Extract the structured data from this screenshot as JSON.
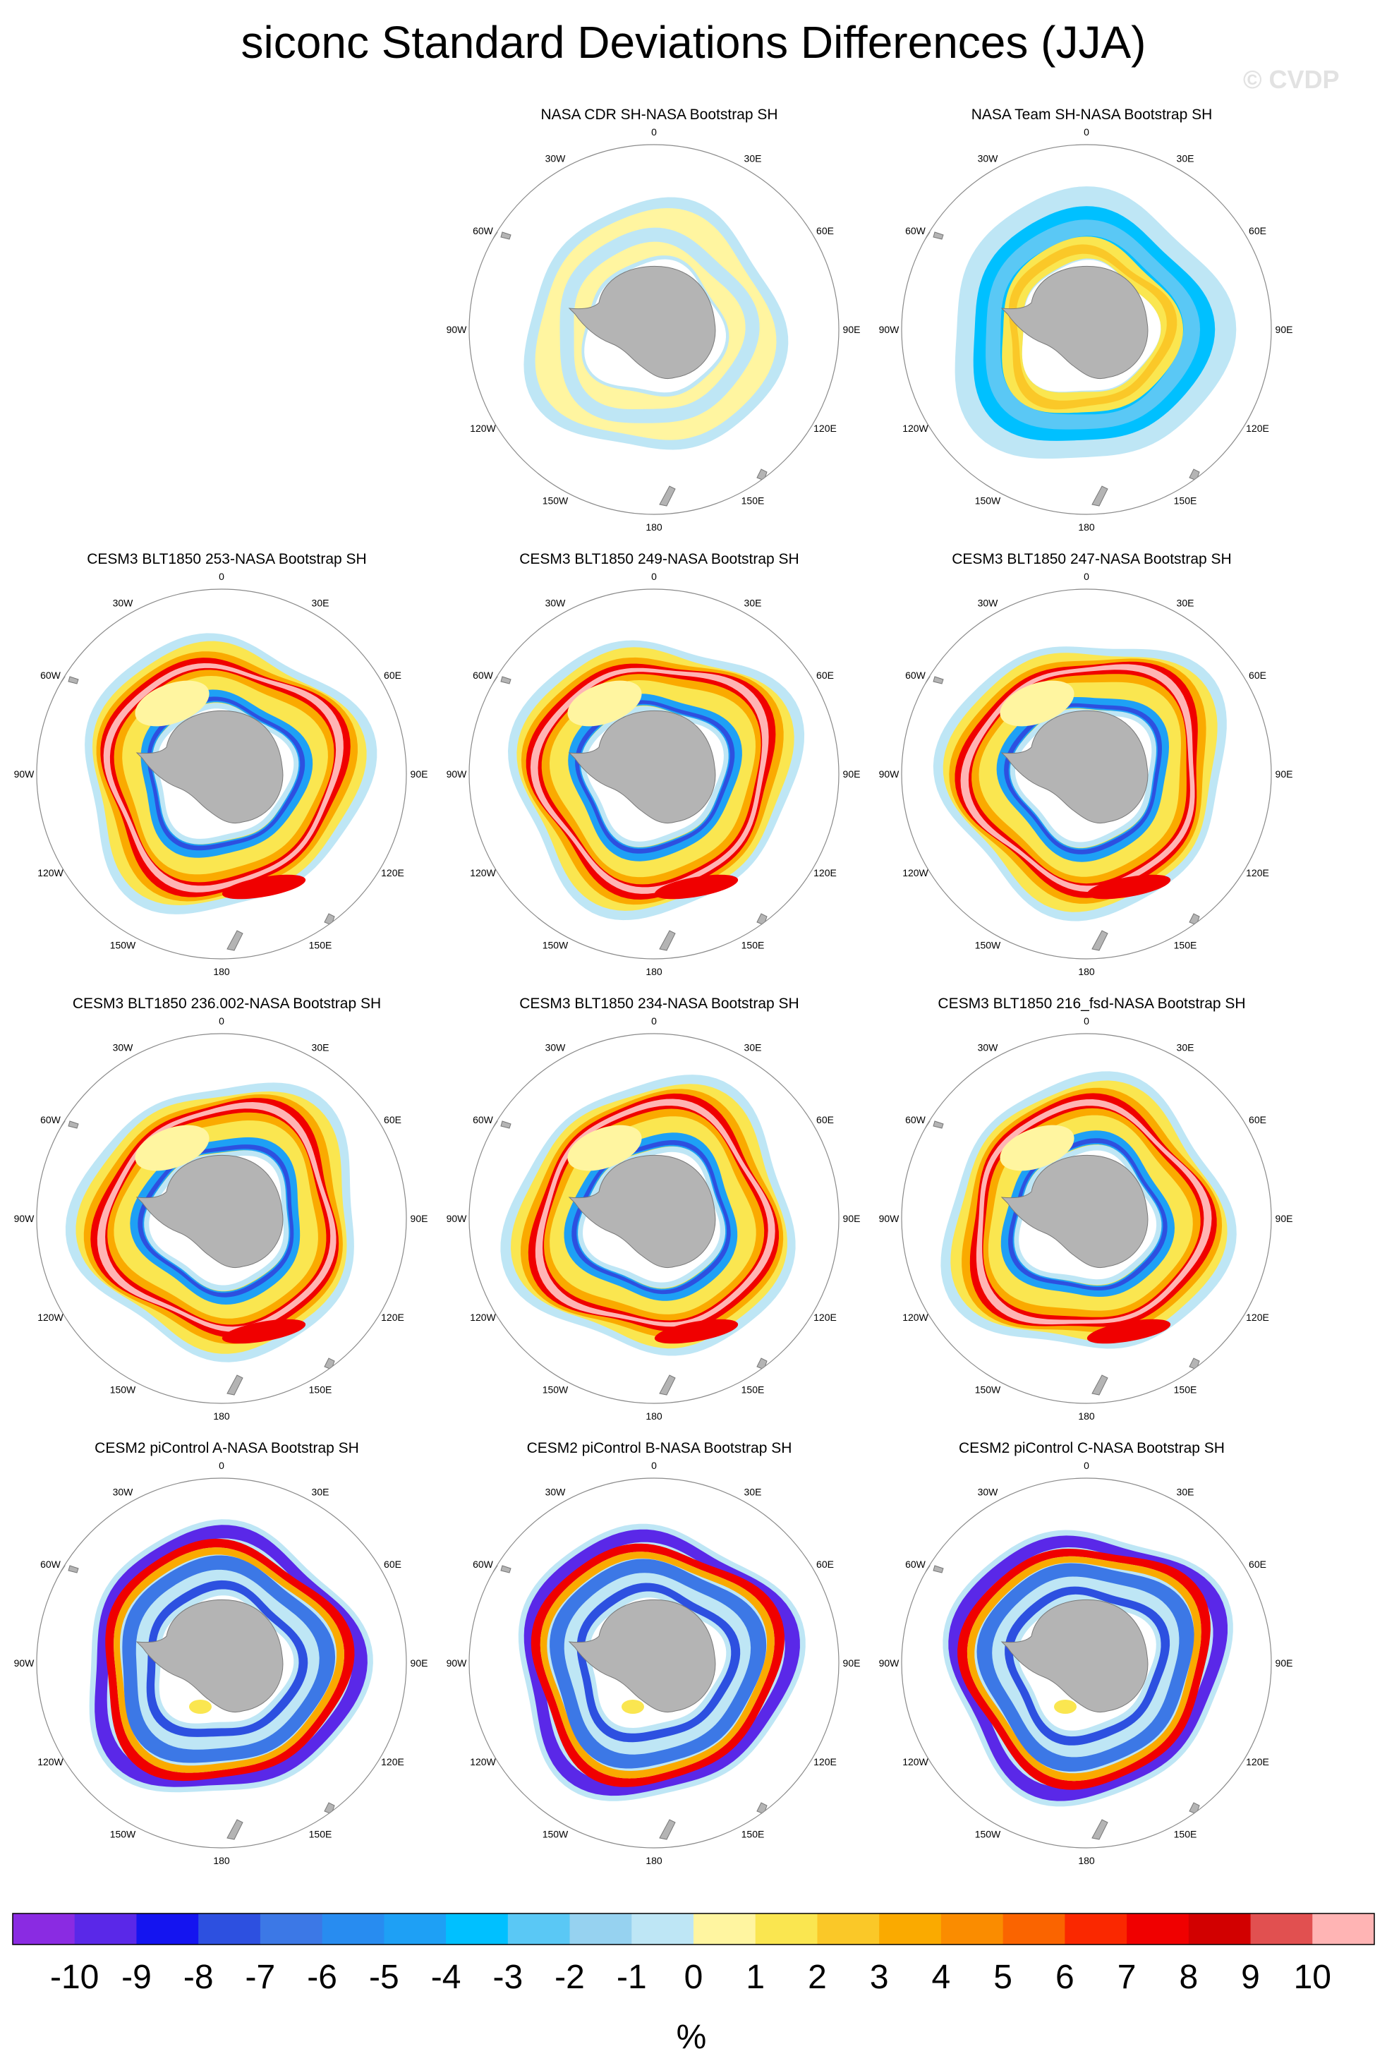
{
  "figure": {
    "title": "siconc Standard Deviations Differences (JJA)",
    "watermark": "© CVDP",
    "units": "%"
  },
  "longitude_labels": [
    "0",
    "30E",
    "60E",
    "90E",
    "120E",
    "150E",
    "180",
    "150W",
    "120W",
    "90W",
    "60W",
    "30W"
  ],
  "colorbar": {
    "ticks": [
      "-10",
      "-9",
      "-8",
      "-7",
      "-6",
      "-5",
      "-4",
      "-3",
      "-2",
      "-1",
      "0",
      "1",
      "2",
      "3",
      "4",
      "5",
      "6",
      "7",
      "8",
      "9",
      "10"
    ],
    "colors": [
      "#8a2be2",
      "#5a28e8",
      "#1414f0",
      "#2d50e0",
      "#3c78e6",
      "#288cf0",
      "#1ea0f5",
      "#00c0ff",
      "#5ac8f5",
      "#96d2f0",
      "#bee6f5",
      "#fff5a0",
      "#fae650",
      "#fac828",
      "#faaa00",
      "#fa8c00",
      "#fa6400",
      "#fa2800",
      "#f00000",
      "#d20000",
      "#e15050",
      "#ffb4b4"
    ]
  },
  "chart_data": {
    "type": "heatmap",
    "projection": "south polar stereographic",
    "variable": "siconc standard deviation difference",
    "season": "JJA",
    "units": "%",
    "levels": [
      -10,
      -9,
      -8,
      -7,
      -6,
      -5,
      -4,
      -3,
      -2,
      -1,
      0,
      1,
      2,
      3,
      4,
      5,
      6,
      7,
      8,
      9,
      10
    ],
    "panels": [
      {
        "title": "NASA CDR SH-NASA Bootstrap SH",
        "pattern": "cdr"
      },
      {
        "title": "NASA Team SH-NASA Bootstrap SH",
        "pattern": "team"
      },
      {
        "title": "CESM3 BLT1850 253-NASA Bootstrap SH",
        "pattern": "cesm3"
      },
      {
        "title": "CESM3 BLT1850 249-NASA Bootstrap SH",
        "pattern": "cesm3"
      },
      {
        "title": "CESM3 BLT1850 247-NASA Bootstrap SH",
        "pattern": "cesm3"
      },
      {
        "title": "CESM3 BLT1850 236.002-NASA Bootstrap SH",
        "pattern": "cesm3"
      },
      {
        "title": "CESM3 BLT1850 234-NASA Bootstrap SH",
        "pattern": "cesm3"
      },
      {
        "title": "CESM3 BLT1850 216_fsd-NASA Bootstrap SH",
        "pattern": "cesm3"
      },
      {
        "title": "CESM2 piControl A-NASA Bootstrap SH",
        "pattern": "cesm2"
      },
      {
        "title": "CESM2 piControl B-NASA Bootstrap SH",
        "pattern": "cesm2"
      },
      {
        "title": "CESM2 piControl C-NASA Bootstrap SH",
        "pattern": "cesm2"
      }
    ]
  }
}
